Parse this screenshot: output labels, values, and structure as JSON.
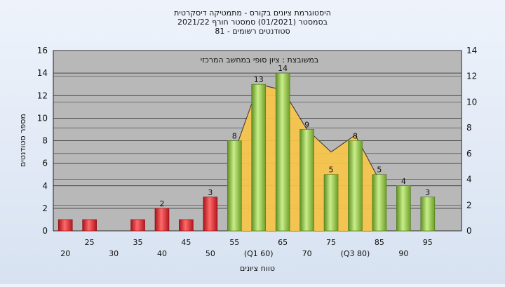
{
  "chart_data": {
    "type": "bar",
    "title_lines": [
      "היסטוגרמת ציונים בקורס - מתמטיקה דיסקרטית",
      "בסמסטר  (01/2021)  סמסטר חורף  2021/22",
      "סטודנטים רשומים - 81"
    ],
    "ylabel": "מספר סטודנטים",
    "xlabel": "טווח ציונים",
    "annotation": "במשובצת : ציון סופי במחשב המרכזי",
    "ylim": [
      0,
      16
    ],
    "yticks": [
      "0",
      "2",
      "4",
      "6",
      "8",
      "10",
      "12",
      "14",
      "16"
    ],
    "y2lim": [
      0,
      14
    ],
    "y2ticks": [
      "0",
      "2",
      "4",
      "6",
      "8",
      "10",
      "12",
      "14"
    ],
    "grid": true,
    "x": [
      20,
      25,
      35,
      40,
      45,
      50,
      55,
      60,
      65,
      70,
      75,
      80,
      85,
      90,
      95
    ],
    "values": [
      1,
      1,
      1,
      2,
      1,
      3,
      8,
      13,
      14,
      9,
      5,
      8,
      5,
      4,
      3
    ],
    "bar_labels": [
      "",
      "",
      "",
      "2",
      "",
      "3",
      "8",
      "13",
      "14",
      "9",
      "5",
      "8",
      "5",
      "4",
      "3"
    ],
    "xticks": [
      {
        "value": 20,
        "label": "20",
        "row": 2
      },
      {
        "value": 25,
        "label": "25",
        "row": 1
      },
      {
        "value": 30,
        "label": "30",
        "row": 2
      },
      {
        "value": 35,
        "label": "35",
        "row": 1
      },
      {
        "value": 40,
        "label": "40",
        "row": 2
      },
      {
        "value": 45,
        "label": "45",
        "row": 1
      },
      {
        "value": 50,
        "label": "50",
        "row": 2
      },
      {
        "value": 55,
        "label": "55",
        "row": 1
      },
      {
        "value": 60,
        "label": "(Q1 60)",
        "row": 2
      },
      {
        "value": 65,
        "label": "65",
        "row": 1
      },
      {
        "value": 70,
        "label": "70",
        "row": 2
      },
      {
        "value": 75,
        "label": "75",
        "row": 1
      },
      {
        "value": 80,
        "label": "(Q3 80)",
        "row": 2
      },
      {
        "value": 85,
        "label": "85",
        "row": 1
      },
      {
        "value": 90,
        "label": "90",
        "row": 2
      },
      {
        "value": 95,
        "label": "95",
        "row": 1
      }
    ],
    "area_series": {
      "x": [
        55,
        60,
        65,
        70,
        75,
        80,
        85
      ],
      "values": [
        7,
        13,
        12.5,
        9,
        7,
        8.5,
        4.5
      ]
    },
    "colors": {
      "fail": "#d8262c",
      "pass": "#8cc63e",
      "area": "#f8c44a",
      "plot_bg": "#b8b8b8",
      "marker_line": "#333333"
    }
  }
}
